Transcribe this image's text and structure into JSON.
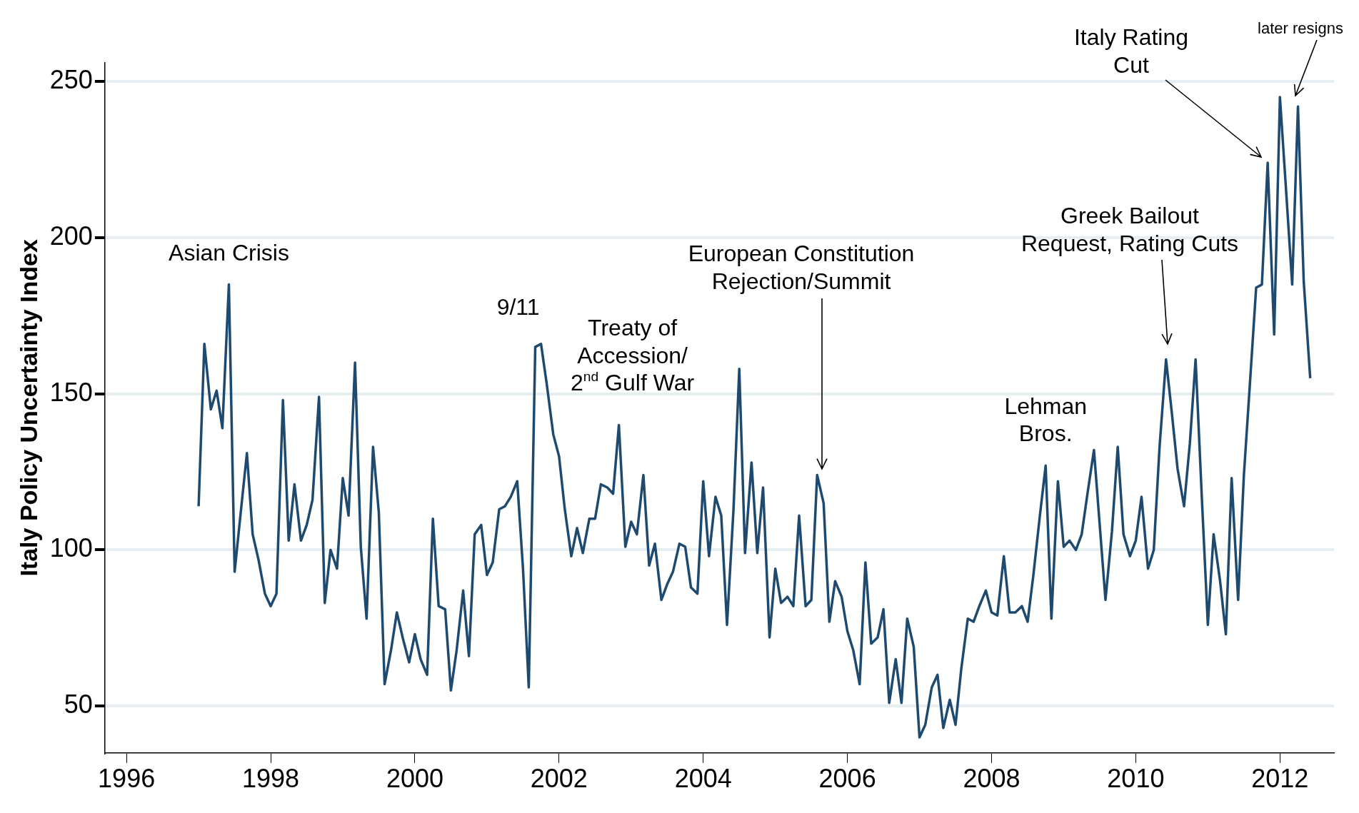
{
  "chart_data": {
    "type": "line",
    "ylabel": "Italy Policy Uncertainty Index",
    "x": [
      1997.0,
      1997.08,
      1997.17,
      1997.25,
      1997.33,
      1997.42,
      1997.5,
      1997.58,
      1997.67,
      1997.75,
      1997.83,
      1997.92,
      1998.0,
      1998.08,
      1998.17,
      1998.25,
      1998.33,
      1998.42,
      1998.5,
      1998.58,
      1998.67,
      1998.75,
      1998.83,
      1998.92,
      1999.0,
      1999.08,
      1999.17,
      1999.25,
      1999.33,
      1999.42,
      1999.5,
      1999.58,
      1999.67,
      1999.75,
      1999.83,
      1999.92,
      2000.0,
      2000.08,
      2000.17,
      2000.25,
      2000.33,
      2000.42,
      2000.5,
      2000.58,
      2000.67,
      2000.75,
      2000.83,
      2000.92,
      2001.0,
      2001.08,
      2001.17,
      2001.25,
      2001.33,
      2001.42,
      2001.5,
      2001.58,
      2001.67,
      2001.75,
      2001.83,
      2001.92,
      2002.0,
      2002.08,
      2002.17,
      2002.25,
      2002.33,
      2002.42,
      2002.5,
      2002.58,
      2002.67,
      2002.75,
      2002.83,
      2002.92,
      2003.0,
      2003.08,
      2003.17,
      2003.25,
      2003.33,
      2003.42,
      2003.5,
      2003.58,
      2003.67,
      2003.75,
      2003.83,
      2003.92,
      2004.0,
      2004.08,
      2004.17,
      2004.25,
      2004.33,
      2004.42,
      2004.5,
      2004.58,
      2004.67,
      2004.75,
      2004.83,
      2004.92,
      2005.0,
      2005.08,
      2005.17,
      2005.25,
      2005.33,
      2005.42,
      2005.5,
      2005.58,
      2005.67,
      2005.75,
      2005.83,
      2005.92,
      2006.0,
      2006.08,
      2006.17,
      2006.25,
      2006.33,
      2006.42,
      2006.5,
      2006.58,
      2006.67,
      2006.75,
      2006.83,
      2006.92,
      2007.0,
      2007.08,
      2007.17,
      2007.25,
      2007.33,
      2007.42,
      2007.5,
      2007.58,
      2007.67,
      2007.75,
      2007.83,
      2007.92,
      2008.0,
      2008.08,
      2008.17,
      2008.25,
      2008.33,
      2008.42,
      2008.5,
      2008.58,
      2008.67,
      2008.75,
      2008.83,
      2008.92,
      2009.0,
      2009.08,
      2009.17,
      2009.25,
      2009.33,
      2009.42,
      2009.5,
      2009.58,
      2009.67,
      2009.75,
      2009.83,
      2009.92,
      2010.0,
      2010.08,
      2010.17,
      2010.25,
      2010.33,
      2010.42,
      2010.5,
      2010.58,
      2010.67,
      2010.75,
      2010.83,
      2010.92,
      2011.0,
      2011.08,
      2011.17,
      2011.25,
      2011.33,
      2011.42,
      2011.5,
      2011.58,
      2011.67,
      2011.75,
      2011.83,
      2011.92,
      2012.0,
      2012.08,
      2012.17,
      2012.25,
      2012.33,
      2012.42
    ],
    "series": [
      {
        "color": "#1f4a6f",
        "values": [
          114,
          166,
          145,
          151,
          139,
          185,
          93,
          111,
          131,
          105,
          97,
          86,
          82,
          86,
          148,
          103,
          121,
          103,
          108,
          116,
          149,
          83,
          100,
          94,
          123,
          111,
          160,
          101,
          78,
          133,
          112,
          57,
          68,
          80,
          72,
          64,
          73,
          65,
          60,
          110,
          82,
          81,
          55,
          68,
          87,
          66,
          105,
          108,
          92,
          96,
          113,
          114,
          117,
          122,
          94,
          56,
          165,
          166,
          153,
          137,
          130,
          113,
          98,
          107,
          99,
          110,
          110,
          121,
          120,
          118,
          140,
          101,
          109,
          105,
          124,
          95,
          102,
          84,
          89,
          93,
          102,
          101,
          88,
          86,
          122,
          98,
          117,
          111,
          76,
          113,
          158,
          99,
          128,
          99,
          120,
          72,
          94,
          83,
          85,
          82,
          111,
          82,
          84,
          124,
          115,
          77,
          90,
          85,
          74,
          68,
          57,
          96,
          70,
          72,
          81,
          51,
          65,
          51,
          78,
          69,
          40,
          44,
          56,
          60,
          43,
          52,
          44,
          62,
          78,
          77,
          82,
          87,
          80,
          79,
          98,
          80,
          80,
          82,
          77,
          92,
          111,
          127,
          78,
          122,
          101,
          103,
          100,
          105,
          118,
          132,
          108,
          84,
          106,
          133,
          105,
          98,
          103,
          117,
          94,
          100,
          133,
          161,
          144,
          126,
          114,
          134,
          161,
          115,
          76,
          105,
          90,
          73,
          123,
          84,
          124,
          152,
          184,
          185,
          224,
          169,
          245,
          217,
          185,
          242,
          186,
          155
        ]
      }
    ],
    "xlim": [
      1995.7,
      2012.75
    ],
    "xticks": [
      1996,
      1998,
      2000,
      2002,
      2004,
      2006,
      2008,
      2010,
      2012
    ],
    "ylim": [
      35,
      256
    ],
    "yticks": [
      50,
      100,
      150,
      200,
      250
    ],
    "grid": "y",
    "legend": false,
    "marker": "none",
    "line_style": "solid",
    "annotations": [
      {
        "text": "Asian Crisis",
        "x": 1997.42,
        "y": 185
      },
      {
        "text": "9/11",
        "x": 2001.75,
        "y": 166
      },
      {
        "text": "Treaty of\nAccession/\n2$^{nd}$ Gulf War",
        "x": 2002.83,
        "y": 140
      },
      "European Constitution\nRejection/Summit",
      {
        "text": "Lehman\nBros.",
        "x": 2008.75,
        "y": 127
      },
      "Greek Bailout\nRequest, Rating Cuts",
      "Italy Rating\nCut",
      "later resigns"
    ]
  }
}
